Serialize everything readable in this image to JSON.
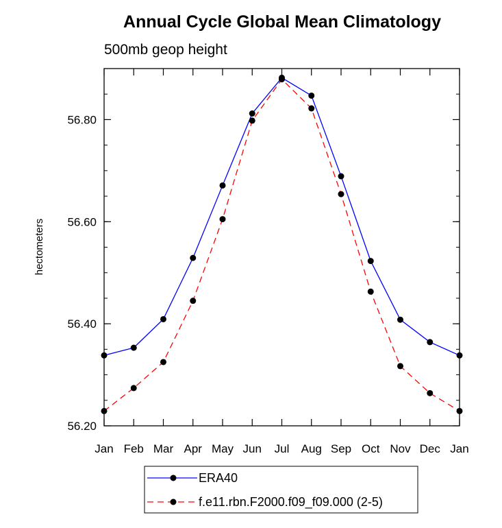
{
  "chart_data": {
    "type": "line",
    "title": "Annual Cycle Global Mean Climatology",
    "subtitle": "500mb geop height",
    "ylabel": "hectometers",
    "xlabel": "",
    "categories": [
      "Jan",
      "Feb",
      "Mar",
      "Apr",
      "May",
      "Jun",
      "Jul",
      "Aug",
      "Sep",
      "Oct",
      "Nov",
      "Dec",
      "Jan"
    ],
    "ylim": [
      56.2,
      56.9
    ],
    "yticks": [
      56.2,
      56.4,
      56.6,
      56.8
    ],
    "ytick_labels": [
      "56.20",
      "56.40",
      "56.60",
      "56.80"
    ],
    "grid": false,
    "legend_position": "bottom",
    "series": [
      {
        "name": "ERA40",
        "color": "#0000ff",
        "line_style": "solid",
        "values": [
          56.338,
          56.353,
          56.409,
          56.529,
          56.671,
          56.812,
          56.882,
          56.847,
          56.689,
          56.523,
          56.408,
          56.364,
          56.338
        ]
      },
      {
        "name": "f.e11.rbn.F2000.f09_f09.000 (2-5)",
        "color": "#ff0000",
        "line_style": "dashed",
        "values": [
          56.229,
          56.274,
          56.325,
          56.445,
          56.605,
          56.798,
          56.879,
          56.822,
          56.654,
          56.463,
          56.317,
          56.264,
          56.229
        ]
      }
    ]
  }
}
